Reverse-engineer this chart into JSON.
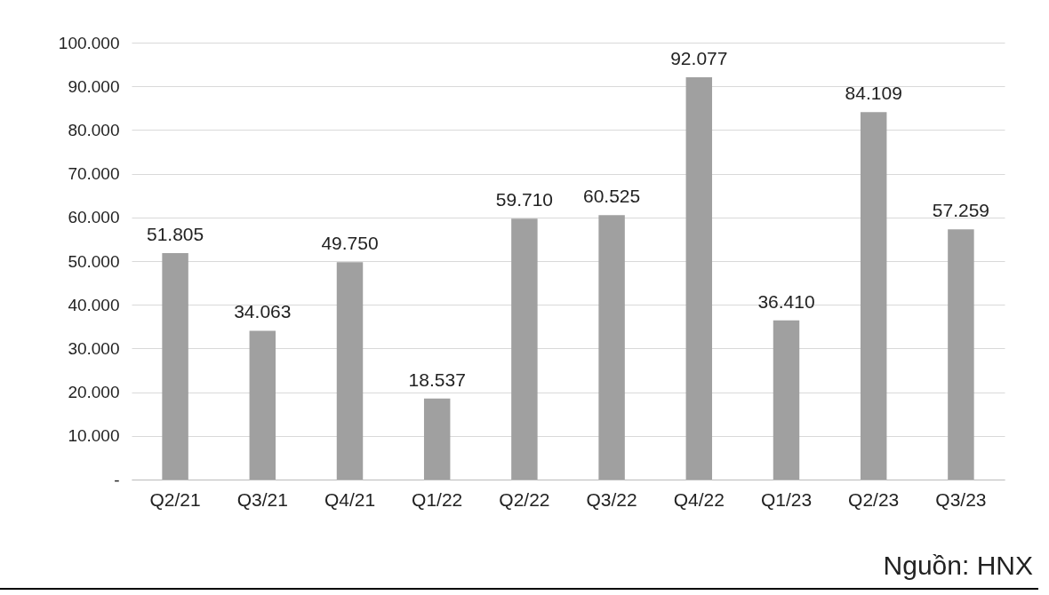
{
  "chart_data": {
    "type": "bar",
    "categories": [
      "Q2/21",
      "Q3/21",
      "Q4/21",
      "Q1/22",
      "Q2/22",
      "Q3/22",
      "Q4/22",
      "Q1/23",
      "Q2/23",
      "Q3/23"
    ],
    "values": [
      51805,
      34063,
      49750,
      18537,
      59710,
      60525,
      92077,
      36410,
      84109,
      57259
    ],
    "value_labels": [
      "51.805",
      "34.063",
      "49.750",
      "18.537",
      "59.710",
      "60.525",
      "92.077",
      "36.410",
      "84.109",
      "57.259"
    ],
    "color": "#a0a0a0",
    "ylim": [
      0,
      100000
    ],
    "yticks": [
      {
        "value": 0,
        "label": "-"
      },
      {
        "value": 10000,
        "label": "10.000"
      },
      {
        "value": 20000,
        "label": "20.000"
      },
      {
        "value": 30000,
        "label": "30.000"
      },
      {
        "value": 40000,
        "label": "40.000"
      },
      {
        "value": 50000,
        "label": "50.000"
      },
      {
        "value": 60000,
        "label": "60.000"
      },
      {
        "value": 70000,
        "label": "70.000"
      },
      {
        "value": 80000,
        "label": "80.000"
      },
      {
        "value": 90000,
        "label": "90.000"
      },
      {
        "value": 100000,
        "label": "100.000"
      }
    ],
    "grid": "y",
    "annotations": [
      "Nguồn: HNX"
    ]
  }
}
